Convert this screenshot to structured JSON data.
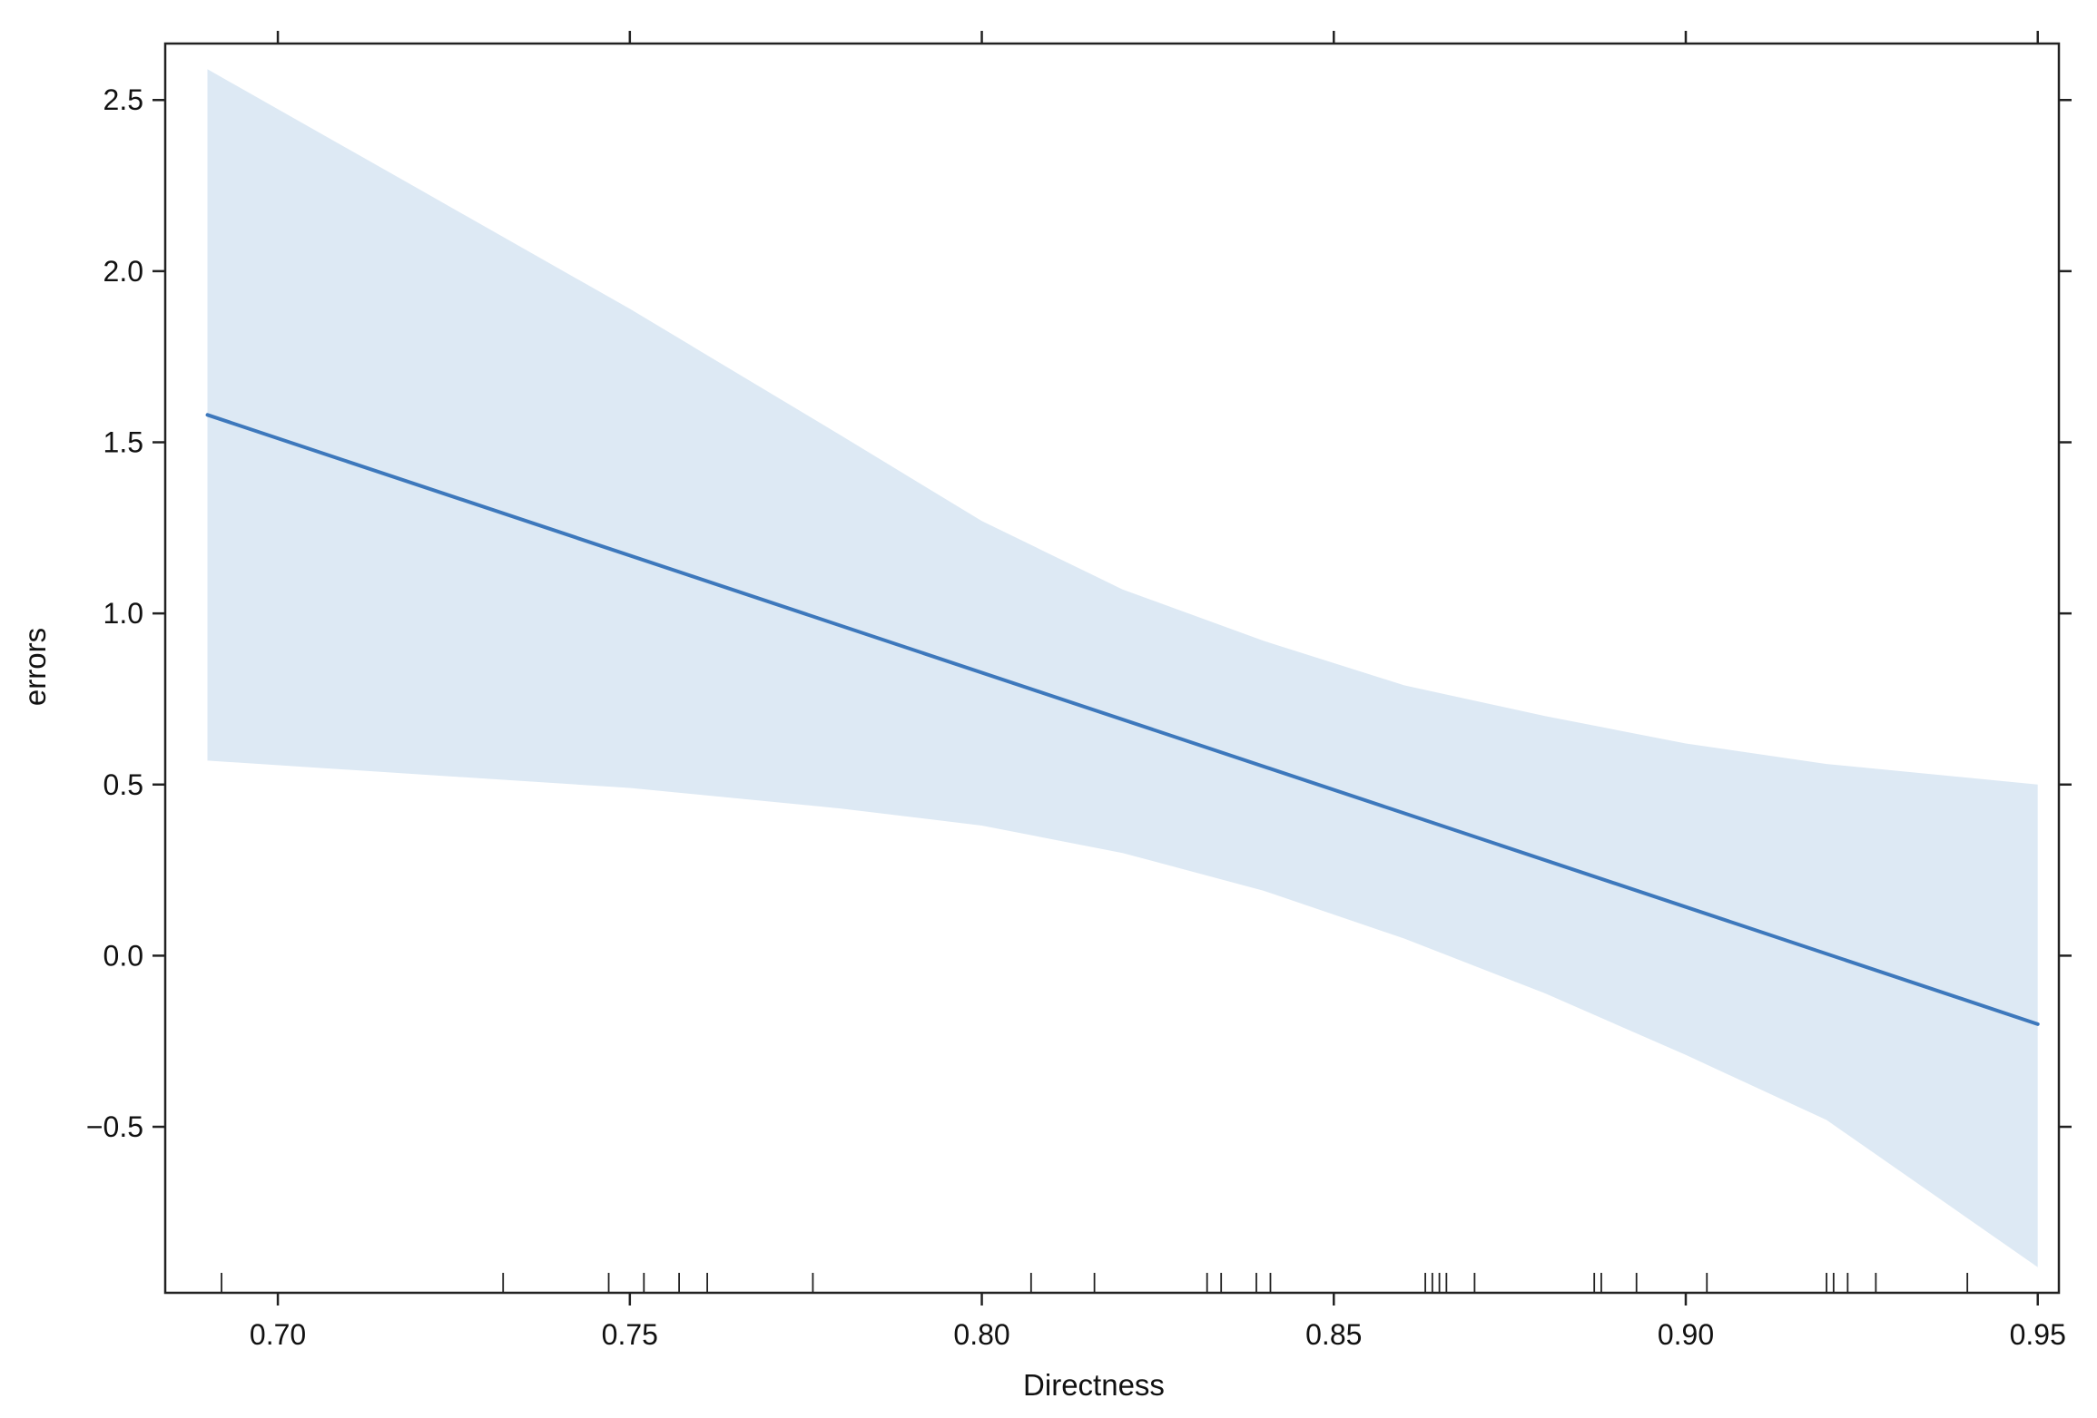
{
  "chart_data": {
    "type": "line",
    "title": "",
    "xlabel": "Directness",
    "ylabel": "errors",
    "xlim": [
      0.684,
      0.953
    ],
    "ylim": [
      -0.985,
      2.665
    ],
    "x_ticks": [
      0.7,
      0.75,
      0.8,
      0.85,
      0.9,
      0.95
    ],
    "x_tick_labels": [
      "0.70",
      "0.75",
      "0.80",
      "0.85",
      "0.90",
      "0.95"
    ],
    "y_ticks": [
      -0.5,
      0.0,
      0.5,
      1.0,
      1.5,
      2.0,
      2.5
    ],
    "y_tick_labels": [
      "−0.5",
      "0.0",
      "0.5",
      "1.0",
      "1.5",
      "2.0",
      "2.5"
    ],
    "grid": false,
    "legend": "none",
    "colors": {
      "line": "#3d78bc",
      "band": "#dde9f4",
      "axis": "#222222"
    },
    "series": [
      {
        "x": [
          0.69,
          0.95
        ],
        "y": [
          1.58,
          -0.2
        ]
      }
    ],
    "confidence_band": {
      "x": [
        0.69,
        0.72,
        0.75,
        0.78,
        0.8,
        0.82,
        0.84,
        0.86,
        0.88,
        0.9,
        0.92,
        0.95
      ],
      "upper": [
        2.59,
        2.24,
        1.89,
        1.52,
        1.27,
        1.07,
        0.92,
        0.79,
        0.7,
        0.62,
        0.56,
        0.5
      ],
      "lower": [
        0.57,
        0.53,
        0.49,
        0.43,
        0.38,
        0.3,
        0.19,
        0.05,
        -0.11,
        -0.29,
        -0.48,
        -0.91
      ]
    },
    "rug": [
      0.692,
      0.732,
      0.747,
      0.752,
      0.757,
      0.761,
      0.776,
      0.807,
      0.816,
      0.832,
      0.834,
      0.839,
      0.841,
      0.863,
      0.864,
      0.865,
      0.866,
      0.87,
      0.887,
      0.888,
      0.893,
      0.903,
      0.92,
      0.921,
      0.923,
      0.927,
      0.94,
      0.954
    ]
  }
}
